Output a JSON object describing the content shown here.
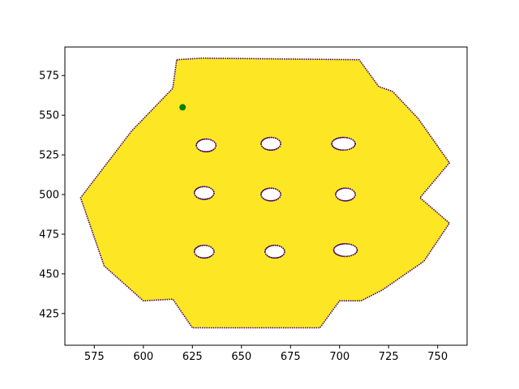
{
  "chart_data": {
    "type": "scatter",
    "title": "",
    "xlabel": "",
    "ylabel": "",
    "xlim": [
      560,
      765
    ],
    "ylim": [
      405,
      593
    ],
    "xticks": [
      575,
      600,
      625,
      650,
      675,
      700,
      725,
      750
    ],
    "yticks": [
      425,
      450,
      475,
      500,
      525,
      550,
      575
    ],
    "grid": false,
    "legend": "none",
    "series": [
      {
        "kind": "filled-region",
        "color": "#fde725",
        "edge_color": "#440154",
        "outline": [
          [
            617,
            585
          ],
          [
            630,
            586
          ],
          [
            710,
            585
          ],
          [
            720,
            568
          ],
          [
            727,
            565
          ],
          [
            740,
            548
          ],
          [
            756,
            520
          ],
          [
            741,
            498
          ],
          [
            756,
            482
          ],
          [
            743,
            458
          ],
          [
            722,
            440
          ],
          [
            711,
            433
          ],
          [
            700,
            433
          ],
          [
            690,
            416
          ],
          [
            625,
            416
          ],
          [
            615,
            434
          ],
          [
            600,
            433
          ],
          [
            580,
            455
          ],
          [
            568,
            498
          ],
          [
            594,
            540
          ],
          [
            615,
            567
          ]
        ],
        "holes": [
          {
            "x": 632,
            "y": 531,
            "rx": 5,
            "ry": 4
          },
          {
            "x": 665,
            "y": 532,
            "rx": 5,
            "ry": 4
          },
          {
            "x": 702,
            "y": 532,
            "rx": 6,
            "ry": 4
          },
          {
            "x": 631,
            "y": 501,
            "rx": 5,
            "ry": 4
          },
          {
            "x": 665,
            "y": 500,
            "rx": 5,
            "ry": 4
          },
          {
            "x": 703,
            "y": 500,
            "rx": 5,
            "ry": 4
          },
          {
            "x": 631,
            "y": 464,
            "rx": 5,
            "ry": 4
          },
          {
            "x": 667,
            "y": 464,
            "rx": 5,
            "ry": 4
          },
          {
            "x": 703,
            "y": 465,
            "rx": 6,
            "ry": 4
          }
        ]
      },
      {
        "kind": "point",
        "color": "#008000",
        "x": [
          620
        ],
        "y": [
          555
        ]
      }
    ]
  }
}
